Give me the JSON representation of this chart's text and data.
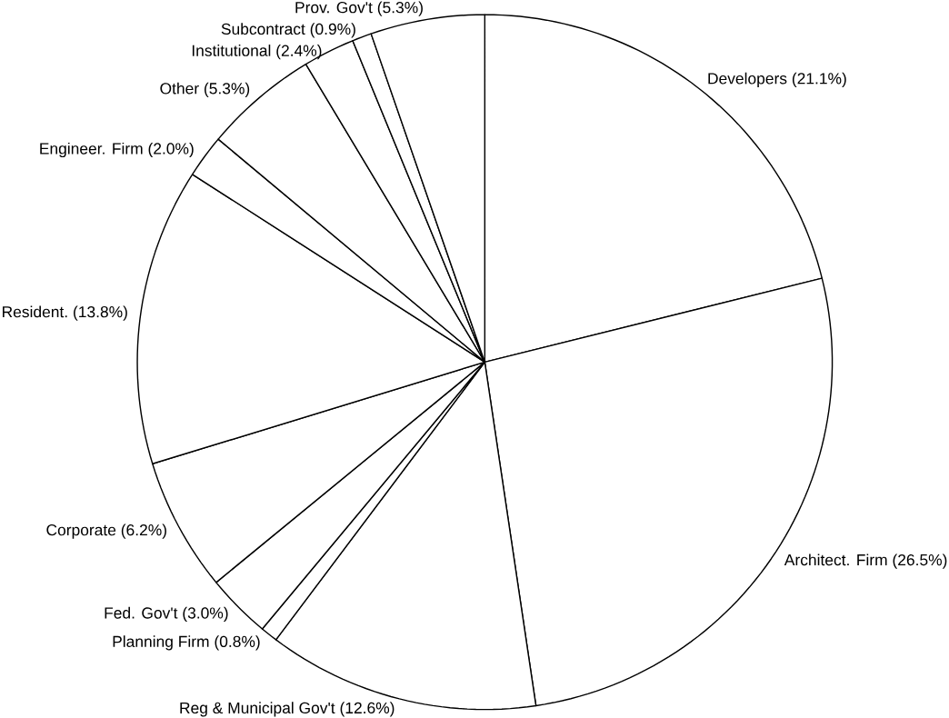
{
  "chart_data": {
    "type": "pie",
    "categories": [
      "Developers",
      "Architect. Firm",
      "Reg & Municipal Gov't",
      "Planning Firm",
      "Fed. Gov't",
      "Corporate",
      "Resident.",
      "Engineer. Firm",
      "Other",
      "Institutional",
      "Subcontract",
      "Prov. Gov't"
    ],
    "values": [
      21.1,
      26.5,
      12.6,
      0.8,
      3.0,
      6.2,
      13.8,
      2.0,
      5.3,
      2.4,
      0.9,
      5.3
    ],
    "value_labels": [
      "(21.1%)",
      "(26.5%)",
      "(12.6%)",
      "(0.8%)",
      "(3.0%)",
      "(6.2%)",
      "(13.8%)",
      "(2.0%)",
      "(5.3%)",
      "(2.4%)",
      "(0.9%)",
      "(5.3%)"
    ],
    "colors": [
      "#ffffff",
      "#ffffff",
      "#ffffff",
      "#ffffff",
      "#ffffff",
      "#ffffff",
      "#ffffff",
      "#ffffff",
      "#ffffff",
      "#ffffff",
      "#ffffff",
      "#ffffff"
    ]
  }
}
